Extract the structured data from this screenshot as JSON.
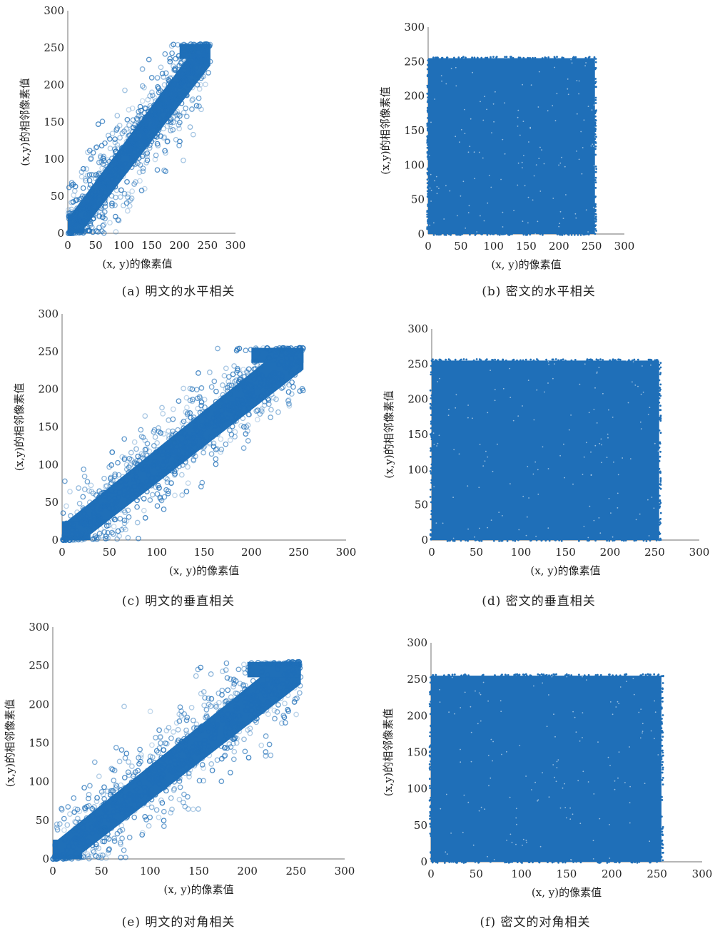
{
  "theme": {
    "point_color": "#1f6fb8",
    "axis_color": "#8a8a8a"
  },
  "chart_data": [
    {
      "id": "a",
      "type": "scatter",
      "pattern": "diagonal",
      "marker": "open-circle",
      "caption": "(a) 明文的水平相关",
      "xlabel": "(x, y)的像素值",
      "ylabel": "(x,y)的相邻像素值",
      "xlim": [
        0,
        300
      ],
      "ylim": [
        0,
        300
      ],
      "xticks": [
        0,
        50,
        100,
        150,
        200,
        250,
        300
      ],
      "yticks": [
        0,
        50,
        100,
        150,
        200,
        250,
        300
      ],
      "data_range": [
        0,
        255
      ]
    },
    {
      "id": "b",
      "type": "scatter",
      "pattern": "uniform",
      "marker": "dot",
      "caption": "(b) 密文的水平相关",
      "xlabel": "(x, y)的像素值",
      "ylabel": "(x,y)的相邻像素值",
      "xlim": [
        0,
        300
      ],
      "ylim": [
        0,
        300
      ],
      "xticks": [
        0,
        50,
        100,
        150,
        200,
        250,
        300
      ],
      "yticks": [
        0,
        50,
        100,
        150,
        200,
        250,
        300
      ],
      "data_range": [
        0,
        255
      ]
    },
    {
      "id": "c",
      "type": "scatter",
      "pattern": "diagonal",
      "marker": "open-circle",
      "caption": "(c) 明文的垂直相关",
      "xlabel": "(x, y)的像素值",
      "ylabel": "(x,y)的相邻像素值",
      "xlim": [
        0,
        300
      ],
      "ylim": [
        0,
        300
      ],
      "xticks": [
        0,
        50,
        100,
        150,
        200,
        250,
        300
      ],
      "yticks": [
        0,
        50,
        100,
        150,
        200,
        250,
        300
      ],
      "data_range": [
        0,
        255
      ]
    },
    {
      "id": "d",
      "type": "scatter",
      "pattern": "uniform",
      "marker": "dot",
      "caption": "(d) 密文的垂直相关",
      "xlabel": "(x, y)的像素值",
      "ylabel": "(x,y)的相邻像素值",
      "xlim": [
        0,
        300
      ],
      "ylim": [
        0,
        300
      ],
      "xticks": [
        0,
        50,
        100,
        150,
        200,
        250,
        300
      ],
      "yticks": [
        0,
        50,
        100,
        150,
        200,
        250,
        300
      ],
      "data_range": [
        0,
        255
      ]
    },
    {
      "id": "e",
      "type": "scatter",
      "pattern": "diagonal",
      "marker": "open-circle",
      "caption": "(e) 明文的对角相关",
      "xlabel": "(x, y)的像素值",
      "ylabel": "(x,y)的相邻像素值",
      "xlim": [
        0,
        300
      ],
      "ylim": [
        0,
        300
      ],
      "xticks": [
        0,
        50,
        100,
        150,
        200,
        250,
        300
      ],
      "yticks": [
        0,
        50,
        100,
        150,
        200,
        250,
        300
      ],
      "data_range": [
        0,
        255
      ]
    },
    {
      "id": "f",
      "type": "scatter",
      "pattern": "uniform",
      "marker": "dot",
      "caption": "(f) 密文的对角相关",
      "xlabel": "(x, y)的像素值",
      "ylabel": "(x,y)的相邻像素值",
      "xlim": [
        0,
        300
      ],
      "ylim": [
        0,
        300
      ],
      "xticks": [
        0,
        50,
        100,
        150,
        200,
        250,
        300
      ],
      "yticks": [
        0,
        50,
        100,
        150,
        200,
        250,
        300
      ],
      "data_range": [
        0,
        255
      ]
    }
  ]
}
